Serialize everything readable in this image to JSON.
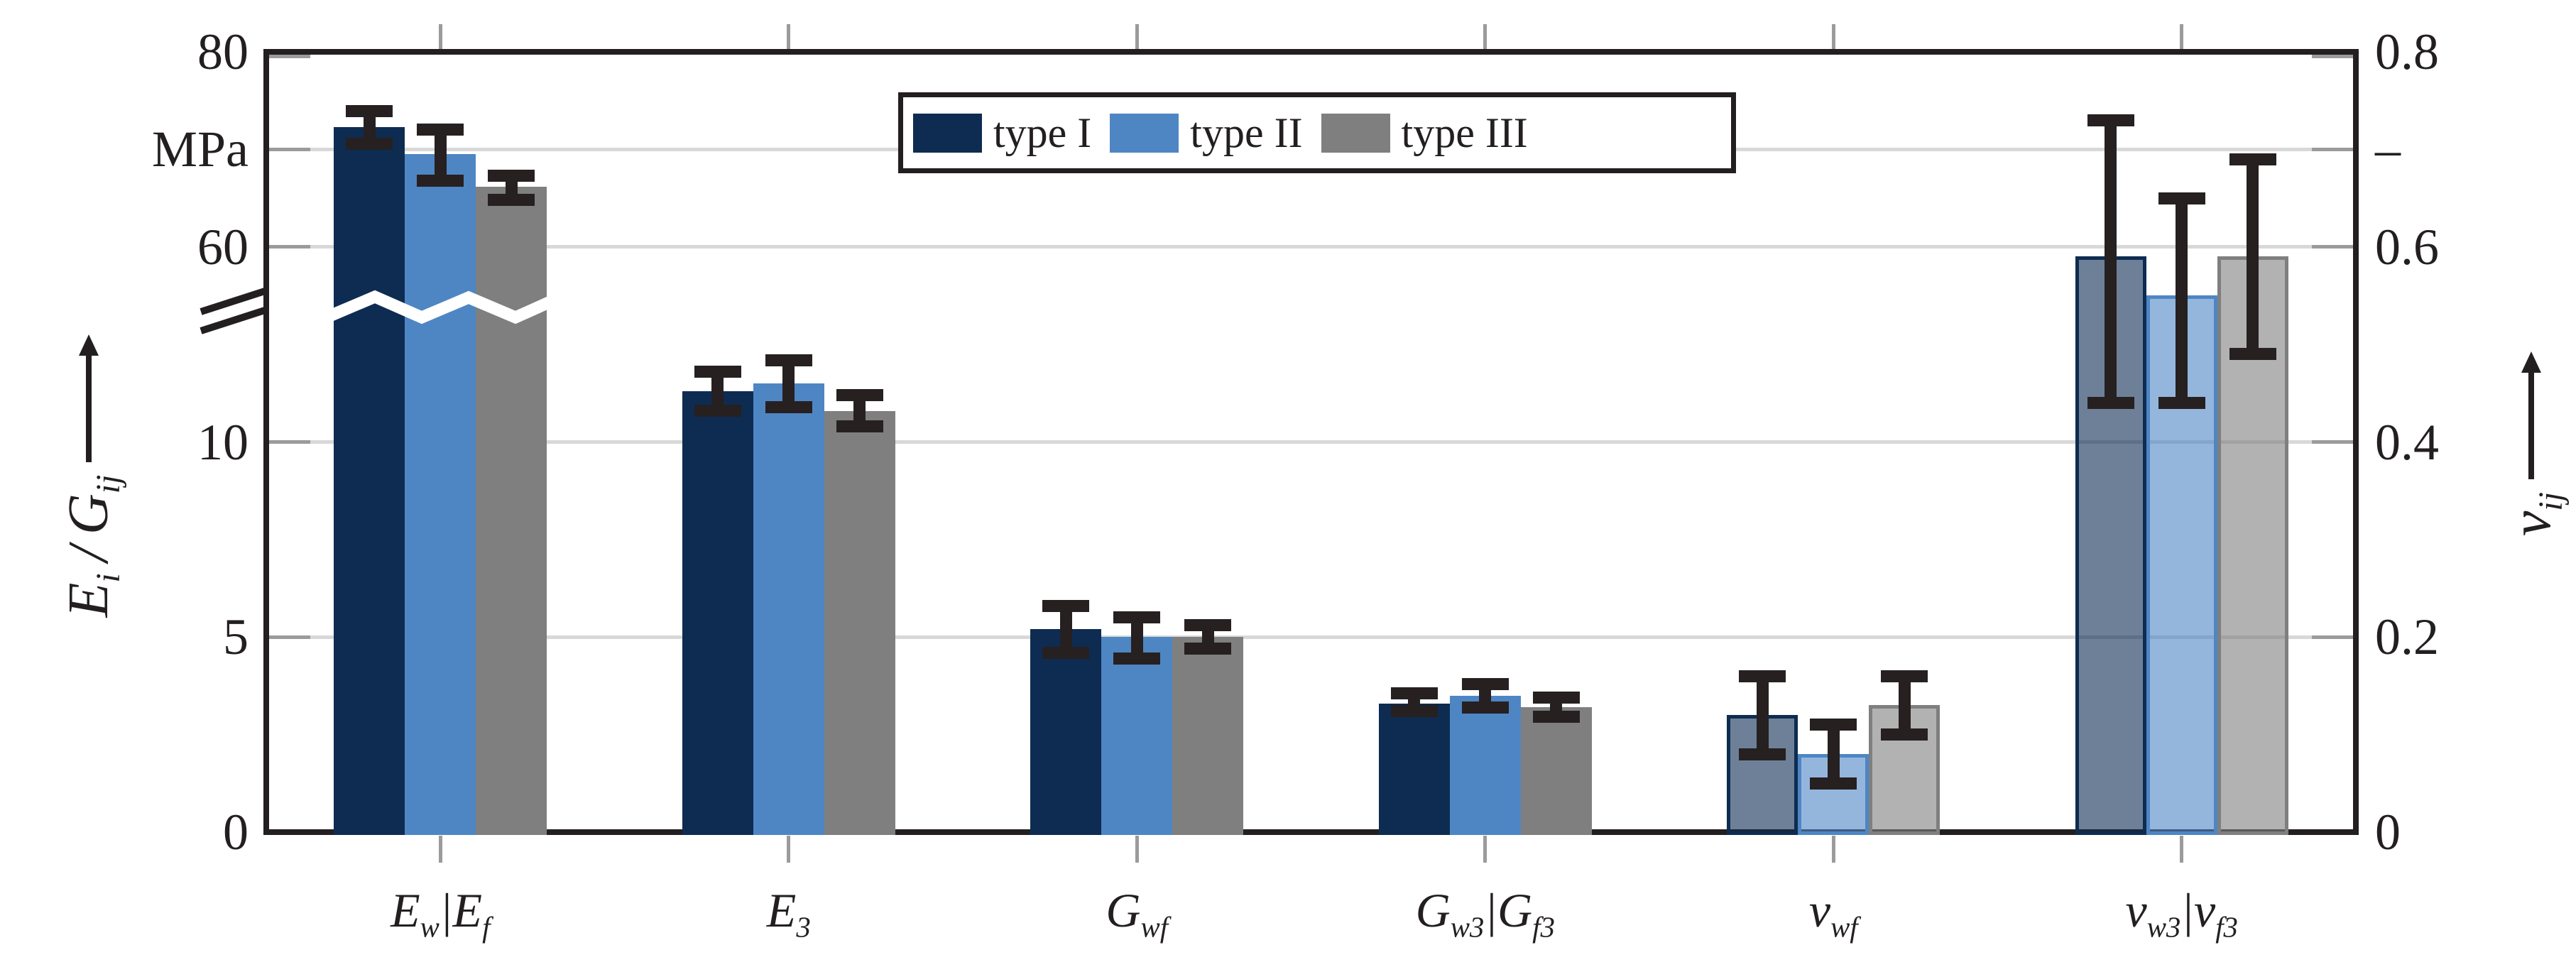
{
  "figure": {
    "kind": "grouped-bar-chart-with-error-bars",
    "background": "#ffffff"
  },
  "legend": {
    "entries": [
      {
        "label": "type I",
        "color": "#0e2c51"
      },
      {
        "label": "type II",
        "color": "#4e86c4"
      },
      {
        "label": "type III",
        "color": "#7f7f7f"
      }
    ]
  },
  "axes": {
    "left": {
      "title_html": "E<sub>i</sub>&thinsp;/&thinsp;G<sub>ij</sub>",
      "unit": "MPa",
      "unit_at_nu": 0.7,
      "ticks": [
        {
          "label": "80",
          "nu": 0.8
        },
        {
          "label": "60",
          "nu": 0.6
        },
        {
          "label": "10",
          "nu": 0.4
        },
        {
          "label": "5",
          "nu": 0.2
        },
        {
          "label": "0",
          "nu": 0.0
        }
      ],
      "break_between_labels": [
        "10",
        "60"
      ]
    },
    "right": {
      "title_html": "&nu;<sub>ij</sub>",
      "unit": "–",
      "unit_at_nu": 0.7,
      "ticks": [
        {
          "label": "0.8",
          "nu": 0.8
        },
        {
          "label": "0.6",
          "nu": 0.6
        },
        {
          "label": "0.4",
          "nu": 0.4
        },
        {
          "label": "0.2",
          "nu": 0.2
        },
        {
          "label": "0",
          "nu": 0.0
        }
      ]
    },
    "gridlines_nu": [
      0.2,
      0.4,
      0.6,
      0.7
    ],
    "edge_stub_nu": [
      0.2,
      0.4,
      0.6,
      0.7,
      0.8
    ]
  },
  "chart_data": {
    "type": "bar",
    "title": "",
    "series_names": [
      "type I",
      "type II",
      "type III"
    ],
    "right_axis_range": [
      0,
      0.8
    ],
    "left_axis_segments": {
      "lower_range_mpa": [
        0,
        12.5
      ],
      "upper_range_mpa": [
        60,
        80
      ],
      "note": "left axis broken between 10 and 60 MPa; lower left ticks align with nu 0.2/0.4, upper with nu 0.6/0.7/0.8"
    },
    "categories": [
      {
        "label_html": "E<sub>w</sub>|E<sub>f</sub>",
        "axis": "mpa-upper",
        "unit": "MPa",
        "values": [
          {
            "value": 72.3,
            "err_lo": 70.6,
            "err_hi": 73.9
          },
          {
            "value": 69.5,
            "err_lo": 66.8,
            "err_hi": 72.0
          },
          {
            "value": 66.2,
            "err_lo": 64.8,
            "err_hi": 67.3
          }
        ]
      },
      {
        "label_html": "E<sub>3</sub>",
        "axis": "mpa-lower",
        "unit": "MPa",
        "values": [
          {
            "value": 11.3,
            "err_lo": 10.8,
            "err_hi": 11.8
          },
          {
            "value": 11.5,
            "err_lo": 10.9,
            "err_hi": 12.1
          },
          {
            "value": 10.8,
            "err_lo": 10.4,
            "err_hi": 11.2
          }
        ]
      },
      {
        "label_html": "G<sub>wf</sub>",
        "axis": "mpa-lower",
        "unit": "MPa",
        "values": [
          {
            "value": 5.2,
            "err_lo": 4.6,
            "err_hi": 5.8
          },
          {
            "value": 5.0,
            "err_lo": 4.45,
            "err_hi": 5.5
          },
          {
            "value": 5.0,
            "err_lo": 4.7,
            "err_hi": 5.3
          }
        ]
      },
      {
        "label_html": "G<sub>w3</sub>|G<sub>f3</sub>",
        "axis": "mpa-lower",
        "unit": "MPa",
        "values": [
          {
            "value": 3.3,
            "err_lo": 3.1,
            "err_hi": 3.55
          },
          {
            "value": 3.5,
            "err_lo": 3.2,
            "err_hi": 3.8
          },
          {
            "value": 3.2,
            "err_lo": 2.95,
            "err_hi": 3.45
          }
        ]
      },
      {
        "label_html": "&nu;<sub>wf</sub>",
        "axis": "nu",
        "unit": "-",
        "values": [
          {
            "value": 0.12,
            "err_lo": 0.08,
            "err_hi": 0.16
          },
          {
            "value": 0.08,
            "err_lo": 0.05,
            "err_hi": 0.11
          },
          {
            "value": 0.13,
            "err_lo": 0.1,
            "err_hi": 0.16
          }
        ]
      },
      {
        "label_html": "&nu;<sub>w3</sub>|&nu;<sub>f3</sub>",
        "axis": "nu",
        "unit": "-",
        "values": [
          {
            "value": 0.59,
            "err_lo": 0.44,
            "err_hi": 0.73
          },
          {
            "value": 0.55,
            "err_lo": 0.44,
            "err_hi": 0.65
          },
          {
            "value": 0.59,
            "err_lo": 0.49,
            "err_hi": 0.69
          }
        ]
      }
    ]
  },
  "colors": {
    "ink": "#231f20",
    "error_bar": "#262021",
    "gridline": "#d8d8d8",
    "tick_stub": "#9b9b9b",
    "series": [
      "#0e2c51",
      "#4e86c4",
      "#7f7f7f"
    ],
    "translucent_fill_alpha": 0.6
  }
}
